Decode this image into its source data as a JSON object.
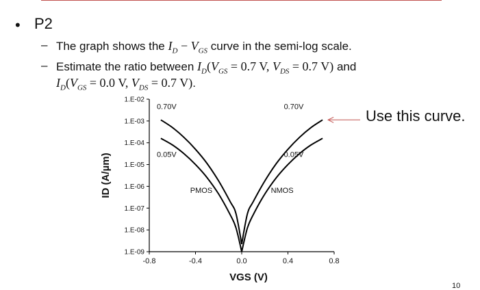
{
  "slide": {
    "bullet": "P2",
    "sub1": {
      "pre": "The graph shows the ",
      "math_id": "I",
      "math_id_sub": "D",
      "math_minus": " − ",
      "math_vgs": "V",
      "math_vgs_sub": "GS",
      "post": " curve in the semi-log scale."
    },
    "sub2": {
      "pre": "Estimate the ratio between ",
      "expr1_id": "I",
      "expr1_id_sub": "D",
      "expr1_open": "(",
      "expr1_vgs": "V",
      "expr1_vgs_sub": "GS",
      "expr1_eq1": " = 0.7 V, ",
      "expr1_vds": "V",
      "expr1_vds_sub": "DS",
      "expr1_eq2": " = 0.7 V)",
      "and": " and",
      "expr2_id": "I",
      "expr2_id_sub": "D",
      "expr2_open": "(",
      "expr2_vgs": "V",
      "expr2_vgs_sub": "GS",
      "expr2_eq1": " = 0.0 V, ",
      "expr2_vds": "V",
      "expr2_vds_sub": "DS",
      "expr2_eq2": " = 0.7 V)",
      "end": "."
    },
    "callout": "Use this curve.",
    "page_number": "10"
  },
  "colors": {
    "accent": "#c0504d",
    "curve": "#000000",
    "text": "#111111"
  },
  "chart_data": {
    "type": "line",
    "xlabel": "VGS (V)",
    "ylabel": "ID (A/µm)",
    "xlim": [
      -0.8,
      0.8
    ],
    "ylim_log10": [
      -9,
      -2
    ],
    "y_scale": "log",
    "x_ticks": [
      -0.8,
      -0.4,
      0.0,
      0.4,
      0.8
    ],
    "x_tick_labels": [
      "-0.8",
      "-0.4",
      "0.0",
      "0.4",
      "0.8"
    ],
    "y_ticks": [
      -9,
      -8,
      -7,
      -6,
      -5,
      -4,
      -3,
      -2
    ],
    "y_tick_labels": [
      "1.E-09",
      "1.E-08",
      "1.E-07",
      "1.E-06",
      "1.E-05",
      "1.E-04",
      "1.E-03",
      "1.E-02"
    ],
    "series": [
      {
        "name": "0.70V",
        "x": [
          -0.7,
          -0.6,
          -0.5,
          -0.4,
          -0.3,
          -0.2,
          -0.1,
          -0.05,
          0.0,
          0.05,
          0.1,
          0.2,
          0.3,
          0.4,
          0.5,
          0.6,
          0.7
        ],
        "y_log10": [
          -2.95,
          -3.3,
          -3.75,
          -4.3,
          -4.95,
          -5.75,
          -6.7,
          -7.25,
          -8.65,
          -7.25,
          -6.7,
          -5.75,
          -4.95,
          -4.3,
          -3.75,
          -3.3,
          -2.95
        ]
      },
      {
        "name": "0.05V",
        "x": [
          -0.7,
          -0.6,
          -0.5,
          -0.4,
          -0.3,
          -0.2,
          -0.1,
          -0.05,
          0.0,
          0.05,
          0.1,
          0.2,
          0.3,
          0.4,
          0.5,
          0.6,
          0.7
        ],
        "y_log10": [
          -3.8,
          -4.1,
          -4.5,
          -5.0,
          -5.6,
          -6.35,
          -7.3,
          -7.9,
          -9.0,
          -7.9,
          -7.3,
          -6.35,
          -5.6,
          -5.0,
          -4.5,
          -4.1,
          -3.8
        ]
      }
    ],
    "annotations": [
      {
        "text": "0.70V",
        "x": -0.65,
        "y_log10": -2.45
      },
      {
        "text": "0.70V",
        "x": 0.45,
        "y_log10": -2.45
      },
      {
        "text": "0.05V",
        "x": -0.65,
        "y_log10": -4.65
      },
      {
        "text": "0.05V",
        "x": 0.45,
        "y_log10": -4.65
      },
      {
        "text": "PMOS",
        "x": -0.35,
        "y_log10": -6.3
      },
      {
        "text": "NMOS",
        "x": 0.35,
        "y_log10": -6.3
      }
    ]
  }
}
